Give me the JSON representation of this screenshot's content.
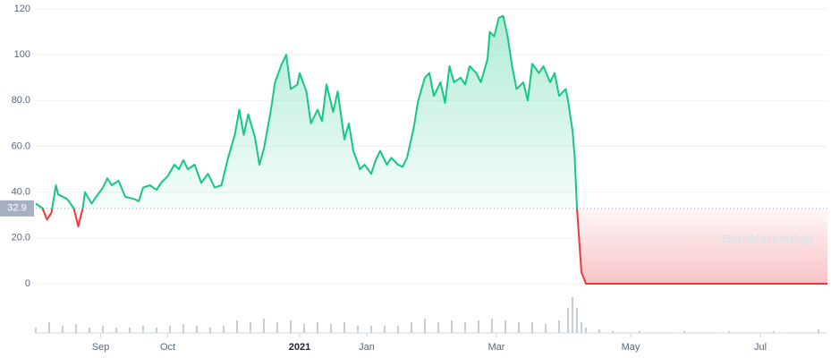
{
  "chart_data": {
    "type": "line",
    "baseline": 32.9,
    "baseline_label": "32.9",
    "watermark": "CoinMarketCap",
    "up_color": "#16c784",
    "down_color": "#ea3943",
    "x": [
      0,
      3,
      5,
      7,
      9,
      10,
      14,
      17,
      19,
      21,
      22,
      25,
      27,
      30,
      32,
      34,
      37,
      40,
      44,
      46,
      48,
      51,
      54,
      56,
      59,
      62,
      64,
      66,
      68,
      71,
      74,
      77,
      80,
      83,
      86,
      89,
      91,
      93,
      95,
      98,
      100,
      102,
      105,
      107,
      110,
      112,
      114,
      117,
      118,
      121,
      123,
      126,
      128,
      130,
      133,
      135,
      138,
      140,
      142,
      145,
      147,
      150,
      152,
      154,
      157,
      159,
      162,
      164,
      166,
      169,
      171,
      174,
      176,
      178,
      181,
      183,
      185,
      187,
      190,
      192,
      194,
      197,
      199,
      202,
      203,
      205,
      207,
      209,
      211,
      213,
      215,
      218,
      220,
      222,
      225,
      227,
      230,
      232,
      234,
      237,
      238,
      240,
      241,
      242,
      244,
      246,
      354
    ],
    "values": [
      35,
      33,
      28,
      31,
      43,
      39,
      37,
      33,
      25,
      33,
      40,
      35,
      38,
      42,
      46,
      43,
      45,
      38,
      37,
      36,
      42,
      43,
      41,
      44,
      47,
      52,
      50,
      54,
      50,
      52,
      44,
      48,
      42,
      43,
      55,
      65,
      76,
      65,
      74,
      64,
      52,
      59,
      75,
      88,
      96,
      100,
      85,
      87,
      92,
      84,
      70,
      76,
      71,
      87,
      75,
      84,
      63,
      70,
      58,
      50,
      52,
      48,
      54,
      58,
      52,
      55,
      52,
      51,
      55,
      68,
      80,
      90,
      92,
      82,
      88,
      79,
      95,
      88,
      90,
      87,
      95,
      92,
      88,
      98,
      110,
      108,
      116,
      117,
      108,
      95,
      85,
      88,
      80,
      96,
      92,
      95,
      88,
      92,
      82,
      85,
      80,
      67,
      55,
      33,
      5,
      0,
      0
    ],
    "volume": {
      "x": [
        0,
        6,
        12,
        18,
        24,
        30,
        36,
        42,
        48,
        54,
        60,
        66,
        72,
        78,
        84,
        90,
        96,
        102,
        108,
        114,
        120,
        126,
        132,
        138,
        144,
        150,
        156,
        162,
        168,
        174,
        180,
        186,
        192,
        198,
        204,
        210,
        216,
        222,
        228,
        234,
        238,
        240,
        242,
        244,
        246,
        252,
        258,
        270,
        290,
        310,
        330,
        350
      ],
      "values": [
        3,
        6,
        4,
        5,
        3,
        4,
        3,
        3,
        4,
        3,
        4,
        5,
        4,
        3,
        4,
        7,
        6,
        8,
        6,
        7,
        5,
        6,
        5,
        6,
        4,
        4,
        4,
        4,
        6,
        8,
        6,
        7,
        6,
        7,
        8,
        7,
        6,
        6,
        5,
        7,
        14,
        20,
        14,
        6,
        3,
        2,
        1,
        1,
        1,
        1,
        1,
        2
      ],
      "ylim": [
        0,
        20
      ],
      "color": "#c7cdd6"
    },
    "xlim": [
      0,
      354
    ],
    "xticks": [
      {
        "value": 29,
        "label": "Sep"
      },
      {
        "value": 59,
        "label": "Oct"
      },
      {
        "value": 118,
        "label": "2021"
      },
      {
        "value": 148,
        "label": "Jan"
      },
      {
        "value": 206,
        "label": "Mar"
      },
      {
        "value": 266,
        "label": "May"
      },
      {
        "value": 324,
        "label": "Jul"
      }
    ],
    "ylim": [
      0,
      120
    ],
    "yticks": [
      0,
      {
        "value": 20,
        "label": "20.0"
      },
      {
        "value": 40,
        "label": "40.0"
      },
      {
        "value": 60,
        "label": "60.0"
      },
      {
        "value": 80,
        "label": "80.0"
      },
      100,
      120
    ],
    "grid": true
  }
}
